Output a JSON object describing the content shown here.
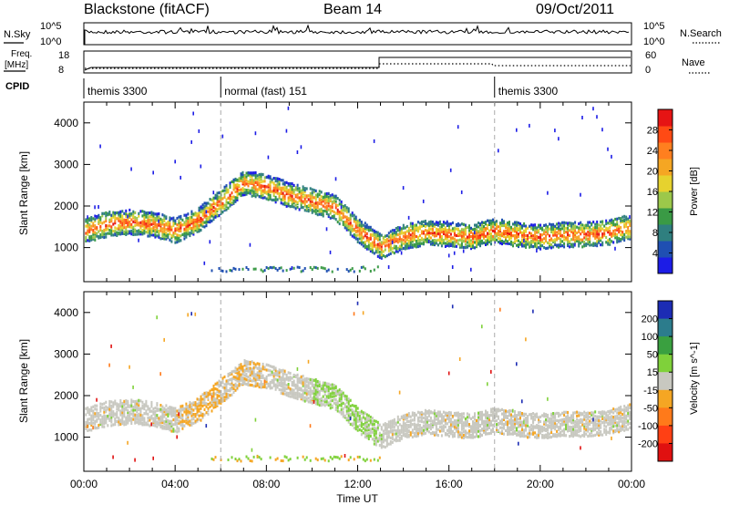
{
  "header": {
    "station": "Blackstone (fitACF)",
    "beam": "Beam 14",
    "date": "09/Oct/2011"
  },
  "left_labels": {
    "nsky": "N.Sky",
    "freq": "Freq.",
    "freq_unit": "[MHz]",
    "cpid": "CPID"
  },
  "right_labels": {
    "nsearch": "N.Search",
    "nave": "Nave"
  },
  "ticks": {
    "nsky_top": "10^5",
    "nsky_bottom": "10^0",
    "freq_top": "18",
    "freq_bottom": "8",
    "nave_top": "60",
    "nave_bottom": "0"
  },
  "cpid_segments": [
    {
      "start": 0,
      "end": 6,
      "label": "themis 3300"
    },
    {
      "start": 6,
      "end": 18,
      "label": "normal (fast) 151"
    },
    {
      "start": 18,
      "end": 24,
      "label": "themis 3300"
    }
  ],
  "chart_data": [
    {
      "type": "heatmap",
      "title": "Power",
      "xlabel": "Time UT",
      "ylabel": "Slant Range [km]",
      "xlim": [
        0,
        24
      ],
      "ylim": [
        180,
        4500
      ],
      "x_ticks": [
        "00:00",
        "04:00",
        "08:00",
        "12:00",
        "16:00",
        "20:00",
        "00:00"
      ],
      "y_ticks": [
        "1000",
        "2000",
        "3000",
        "4000"
      ],
      "colorbar": {
        "label": "Power [dB]",
        "ticks": [
          "4",
          "8",
          "12",
          "16",
          "20",
          "24",
          "28"
        ],
        "colors": [
          "#1c1ce6",
          "#1f4fb2",
          "#2f7f7f",
          "#3a9a45",
          "#9cc84a",
          "#e6d22e",
          "#f5a623",
          "#ff7f1f",
          "#ff4a14",
          "#e61414"
        ]
      },
      "echo_band": {
        "x": [
          0,
          1,
          2,
          3,
          4,
          5,
          6,
          7,
          8,
          9,
          10,
          11,
          12,
          13,
          14,
          15,
          16,
          17,
          18,
          19,
          20,
          21,
          22,
          23,
          24
        ],
        "center": [
          1400,
          1550,
          1600,
          1550,
          1400,
          1650,
          2100,
          2550,
          2450,
          2250,
          2100,
          1950,
          1400,
          1000,
          1250,
          1350,
          1300,
          1250,
          1400,
          1300,
          1250,
          1300,
          1300,
          1350,
          1500
        ]
      }
    },
    {
      "type": "heatmap",
      "title": "Velocity",
      "xlabel": "Time UT",
      "ylabel": "Slant Range [km]",
      "xlim": [
        0,
        24
      ],
      "ylim": [
        180,
        4500
      ],
      "x_ticks": [
        "00:00",
        "04:00",
        "08:00",
        "12:00",
        "16:00",
        "20:00",
        "00:00"
      ],
      "y_ticks": [
        "1000",
        "2000",
        "3000",
        "4000"
      ],
      "colorbar": {
        "label": "Velocity [m s^-1]",
        "ticks": [
          "200",
          "100",
          "50",
          "15",
          "-15",
          "-50",
          "-100",
          "-200"
        ],
        "colors": [
          "#1c2cb4",
          "#2c7c8c",
          "#3aa040",
          "#7fd13a",
          "#c8c8c0",
          "#f5a623",
          "#ff7a1a",
          "#ff4014",
          "#e01010"
        ]
      }
    }
  ],
  "colors": {
    "axis": "#000000",
    "ground_scatter": "#c8c8c0"
  }
}
